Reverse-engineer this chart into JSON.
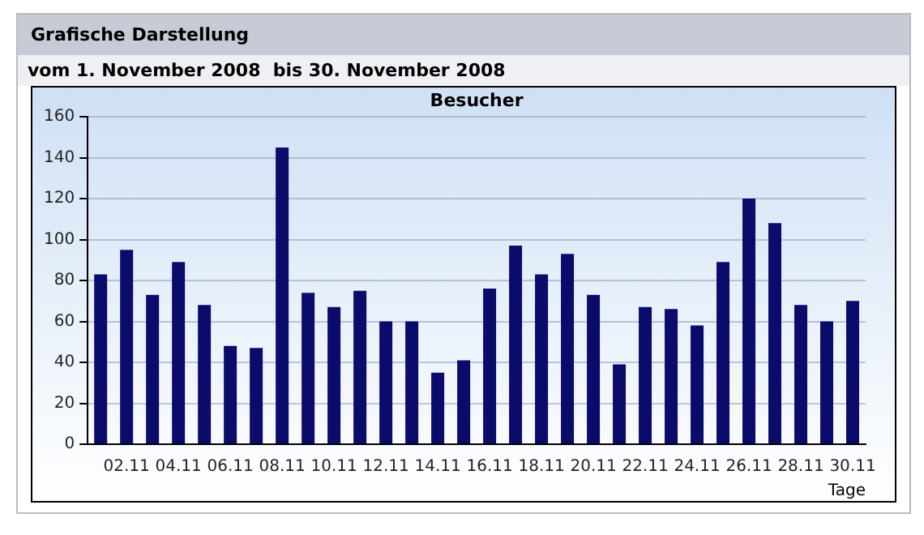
{
  "chart_data": {
    "type": "bar",
    "title": "Grafische Darstellung",
    "subtitle": "vom 1. November 2008  bis 30. November 2008",
    "annotations": [
      "Besucher"
    ],
    "xlabel": "Tage",
    "categories": [
      null,
      "02.11",
      null,
      "04.11",
      null,
      "06.11",
      null,
      "08.11",
      null,
      "10.11",
      null,
      "12.11",
      null,
      "14.11",
      null,
      "16.11",
      null,
      "18.11",
      null,
      "20.11",
      null,
      "22.11",
      null,
      "24.11",
      null,
      "26.11",
      null,
      "28.11",
      null,
      "30.11"
    ],
    "values": [
      83,
      95,
      73,
      89,
      68,
      48,
      47,
      145,
      74,
      67,
      75,
      60,
      60,
      35,
      41,
      76,
      97,
      83,
      93,
      73,
      39,
      67,
      66,
      58,
      89,
      120,
      108,
      68,
      60,
      70
    ],
    "color": "#0b0b6b",
    "ylim": [
      0,
      160
    ],
    "yticks": [
      0,
      20,
      40,
      60,
      80,
      100,
      120,
      140,
      160
    ],
    "grid": "y",
    "legend": false
  }
}
